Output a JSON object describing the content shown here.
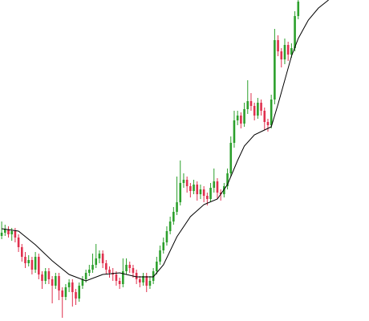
{
  "chart_data": {
    "type": "candlestick",
    "up_color": "#2ca02c",
    "down_color": "#e0304e",
    "line_color": "#000000",
    "xlim": [
      -0.5,
      109
    ],
    "ylim": [
      0,
      400
    ],
    "open": [
      106,
      110,
      114,
      108,
      112,
      104,
      92,
      80,
      72,
      76,
      64,
      80,
      58,
      50,
      62,
      52,
      44,
      56,
      38,
      30,
      42,
      48,
      36,
      28,
      44,
      52,
      60,
      64,
      70,
      78,
      84,
      72,
      64,
      60,
      58,
      50,
      46,
      62,
      70,
      66,
      60,
      52,
      48,
      56,
      44,
      50,
      62,
      74,
      88,
      98,
      112,
      124,
      136,
      148,
      172,
      176,
      168,
      162,
      170,
      158,
      164,
      156,
      152,
      166,
      174,
      160,
      158,
      168,
      184,
      222,
      250,
      256,
      246,
      264,
      274,
      268,
      256,
      272,
      262,
      248,
      244,
      276,
      350,
      336,
      326,
      344,
      332,
      340,
      380
    ],
    "high": [
      124,
      120,
      118,
      116,
      116,
      108,
      96,
      86,
      82,
      80,
      86,
      84,
      62,
      66,
      66,
      56,
      60,
      60,
      42,
      46,
      52,
      52,
      40,
      48,
      56,
      64,
      70,
      84,
      96,
      88,
      88,
      76,
      68,
      66,
      62,
      54,
      78,
      78,
      74,
      70,
      64,
      56,
      60,
      60,
      56,
      66,
      80,
      94,
      104,
      118,
      130,
      142,
      180,
      200,
      184,
      180,
      172,
      176,
      174,
      170,
      168,
      160,
      172,
      190,
      178,
      164,
      172,
      190,
      230,
      262,
      262,
      260,
      272,
      300,
      284,
      272,
      278,
      276,
      266,
      252,
      282,
      364,
      356,
      340,
      352,
      348,
      346,
      386,
      400
    ],
    "low": [
      102,
      106,
      104,
      100,
      98,
      86,
      74,
      66,
      68,
      58,
      60,
      52,
      40,
      46,
      46,
      22,
      40,
      26,
      4,
      26,
      36,
      18,
      20,
      24,
      40,
      48,
      56,
      60,
      66,
      72,
      66,
      58,
      54,
      50,
      44,
      40,
      42,
      58,
      60,
      54,
      46,
      42,
      44,
      36,
      40,
      46,
      58,
      70,
      84,
      94,
      108,
      120,
      132,
      144,
      166,
      160,
      154,
      158,
      150,
      152,
      148,
      144,
      148,
      160,
      152,
      150,
      154,
      164,
      180,
      216,
      244,
      240,
      242,
      258,
      262,
      250,
      252,
      256,
      238,
      236,
      240,
      270,
      330,
      316,
      320,
      324,
      328,
      336,
      376
    ],
    "close": [
      110,
      114,
      108,
      112,
      104,
      92,
      80,
      72,
      76,
      64,
      80,
      58,
      50,
      62,
      52,
      44,
      56,
      38,
      30,
      42,
      48,
      36,
      28,
      44,
      52,
      60,
      64,
      70,
      78,
      84,
      72,
      64,
      60,
      58,
      50,
      46,
      62,
      70,
      66,
      60,
      52,
      48,
      56,
      44,
      50,
      62,
      74,
      88,
      98,
      112,
      124,
      136,
      148,
      172,
      176,
      168,
      162,
      170,
      158,
      164,
      156,
      152,
      166,
      174,
      160,
      158,
      168,
      184,
      222,
      250,
      256,
      246,
      264,
      274,
      268,
      256,
      272,
      262,
      248,
      244,
      276,
      350,
      336,
      326,
      344,
      332,
      340,
      380,
      398
    ],
    "ma": {
      "x": [
        0,
        5,
        10,
        15,
        20,
        25,
        30,
        35,
        40,
        45,
        48,
        52,
        56,
        60,
        64,
        67,
        70,
        72,
        75,
        78,
        80,
        82,
        84,
        86,
        88,
        91,
        94,
        97
      ],
      "values": [
        115,
        112,
        95,
        75,
        58,
        50,
        58,
        60,
        55,
        55,
        70,
        105,
        130,
        145,
        152,
        170,
        200,
        218,
        232,
        238,
        242,
        270,
        300,
        330,
        352,
        375,
        390,
        400
      ]
    }
  }
}
